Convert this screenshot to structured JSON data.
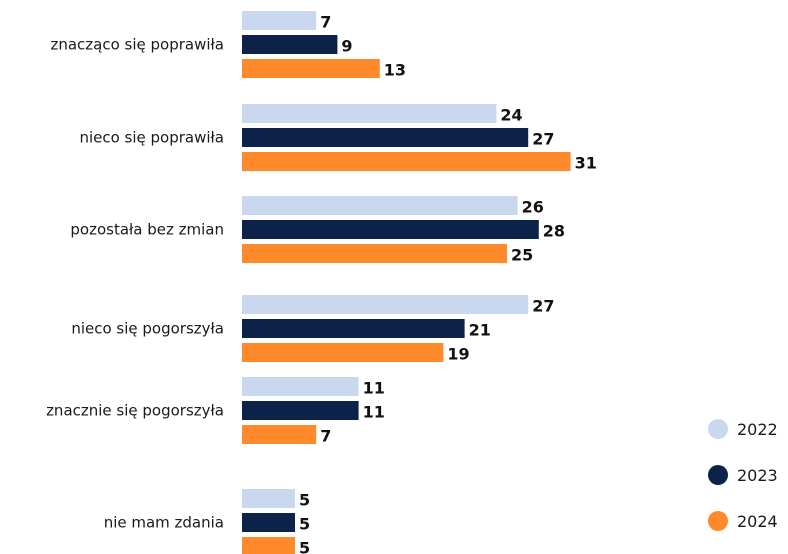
{
  "chart_data": {
    "type": "bar",
    "orientation": "horizontal",
    "categories": [
      "znacząco się poprawiła",
      "nieco się poprawiła",
      "pozostała bez zmian",
      "nieco się pogorszyła",
      "znacznie się pogorszyła",
      "nie mam zdania"
    ],
    "series": [
      {
        "name": "2022",
        "values": [
          7,
          24,
          26,
          27,
          11,
          5
        ]
      },
      {
        "name": "2023",
        "values": [
          9,
          27,
          28,
          21,
          11,
          5
        ]
      },
      {
        "name": "2024",
        "values": [
          13,
          31,
          25,
          19,
          7,
          5
        ]
      }
    ],
    "data_labels": true,
    "grid": false,
    "legend_position": "bottom-right",
    "colors": {
      "2022": "#c9d8ef",
      "2023": "#0d2248",
      "2024": "#ff8a2b"
    }
  }
}
